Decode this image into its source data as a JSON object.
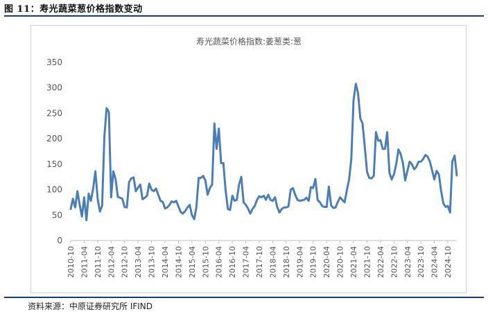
{
  "figure_title": "图 11：寿光蔬菜葱价格指数变动",
  "source": "资料来源：中原证券研究所  IFIND",
  "chart_data": {
    "type": "line",
    "title": "寿光蔬菜价格指数:姜葱类:葱",
    "xlabel": "",
    "ylabel": "",
    "ylim": [
      0,
      350
    ],
    "yticks": [
      0,
      50,
      100,
      150,
      200,
      250,
      300,
      350
    ],
    "grid": false,
    "line_color": "#4a7ebb",
    "x_tick_labels": [
      "2010-10",
      "2011-04",
      "2011-10",
      "2012-04",
      "2012-10",
      "2013-04",
      "2013-10",
      "2014-04",
      "2014-10",
      "2015-04",
      "2015-10",
      "2016-04",
      "2016-10",
      "2017-04",
      "2017-10",
      "2018-04",
      "2018-10",
      "2019-04",
      "2019-10",
      "2020-04",
      "2020-10",
      "2021-04",
      "2021-10",
      "2022-04",
      "2022-10",
      "2023-04",
      "2023-10",
      "2024-04",
      "2024-10"
    ],
    "series": [
      {
        "values": [
          62,
          82,
          65,
          97,
          70,
          47,
          85,
          40,
          92,
          78,
          102,
          136,
          82,
          57,
          68,
          205,
          260,
          252,
          85,
          136,
          120,
          86,
          84,
          82,
          66,
          65,
          115,
          122,
          124,
          97,
          104,
          110,
          81,
          84,
          88,
          112,
          100,
          97,
          102,
          90,
          78,
          76,
          63,
          65,
          70,
          77,
          75,
          78,
          67,
          56,
          53,
          58,
          65,
          70,
          50,
          42,
          65,
          123,
          123,
          127,
          118,
          90,
          103,
          110,
          230,
          180,
          220,
          152,
          152,
          100,
          62,
          60,
          88,
          78,
          80,
          110,
          125,
          75,
          70,
          63,
          53,
          62,
          68,
          80,
          87,
          85,
          88,
          80,
          90,
          80,
          78,
          85,
          66,
          55,
          62,
          65,
          65,
          67,
          100,
          103,
          90,
          80,
          78,
          79,
          80,
          84,
          78,
          105,
          103,
          121,
          80,
          75,
          68,
          66,
          66,
          106,
          69,
          64,
          65,
          76,
          85,
          80,
          75,
          98,
          120,
          160,
          275,
          308,
          290,
          240,
          230,
          185,
          135,
          123,
          122,
          127,
          213,
          196,
          197,
          180,
          180,
          213,
          133,
          120,
          130,
          150,
          179,
          170,
          152,
          118,
          137,
          155,
          150,
          140,
          145,
          155,
          155,
          160,
          168,
          165,
          155,
          138,
          120,
          137,
          130,
          98,
          73,
          66,
          68,
          55,
          155,
          167,
          128
        ]
      }
    ]
  }
}
